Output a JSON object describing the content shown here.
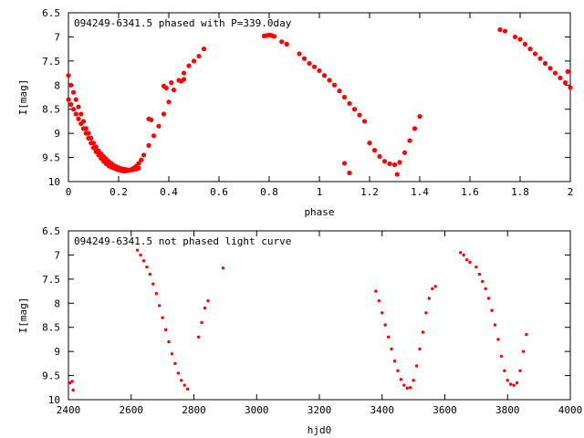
{
  "chart_data": [
    {
      "type": "scatter",
      "title": "094249-6341.5 phased with P=339.0day",
      "xlabel": "phase",
      "ylabel": "I[mag]",
      "xlim": [
        0,
        2
      ],
      "ylim": [
        6.5,
        10
      ],
      "y_inverted": true,
      "grid": false,
      "legend": "none",
      "color": "#ff0000",
      "marker_size": 2.6,
      "x_ticks": [
        "0",
        "0.2",
        "0.4",
        "0.6",
        "0.8",
        "1",
        "1.2",
        "1.4",
        "1.6",
        "1.8",
        "2"
      ],
      "y_ticks": [
        "6.5",
        "7",
        "7.5",
        "8",
        "8.5",
        "9",
        "9.5",
        "10"
      ],
      "series": [
        {
          "x": [
            0.0,
            0.01,
            0.02,
            0.03,
            0.04,
            0.05,
            0.06,
            0.07,
            0.08,
            0.09,
            0.1,
            0.11,
            0.12,
            0.13,
            0.14,
            0.15,
            0.16,
            0.17,
            0.18,
            0.19,
            0.2,
            0.21,
            0.22,
            0.23,
            0.24,
            0.25,
            0.26,
            0.27,
            0.0,
            0.01,
            0.02,
            0.03,
            0.04,
            0.05,
            0.06,
            0.07,
            0.08,
            0.09,
            0.1,
            0.11,
            0.12,
            0.13,
            0.14,
            0.15,
            0.16,
            0.17,
            0.18,
            0.19,
            0.2,
            0.21,
            0.22,
            0.23,
            0.24,
            0.25,
            0.26,
            0.27,
            0.28,
            0.29,
            0.3,
            0.32,
            0.34,
            0.36,
            0.38,
            0.4,
            0.42,
            0.44,
            0.46,
            0.48,
            0.5,
            0.52,
            0.54,
            0.78,
            0.79,
            0.8,
            0.81,
            0.82,
            0.85,
            0.87,
            0.92,
            0.94,
            0.96,
            0.98,
            1.0,
            1.02,
            1.04,
            1.06,
            1.08,
            1.1,
            1.12,
            1.14,
            1.16,
            1.18,
            1.2,
            1.22,
            1.24,
            1.26,
            1.28,
            1.3,
            1.32,
            1.34,
            1.36,
            1.38,
            1.4,
            1.72,
            1.74,
            1.78,
            1.8,
            1.82,
            1.84,
            1.86,
            1.88,
            1.9,
            1.92,
            1.94,
            1.96,
            1.98,
            2.0,
            0.2,
            0.28,
            0.32,
            0.33,
            0.38,
            0.39,
            0.41,
            0.45,
            0.46,
            1.1,
            1.12,
            1.31,
            1.99
          ],
          "y": [
            7.8,
            8.0,
            8.15,
            8.3,
            8.45,
            8.6,
            8.75,
            8.9,
            9.0,
            9.1,
            9.2,
            9.28,
            9.36,
            9.42,
            9.48,
            9.53,
            9.58,
            9.62,
            9.66,
            9.69,
            9.71,
            9.73,
            9.74,
            9.75,
            9.76,
            9.76,
            9.75,
            9.74,
            8.3,
            8.4,
            8.5,
            8.6,
            8.7,
            8.8,
            8.9,
            9.0,
            9.1,
            9.2,
            9.3,
            9.38,
            9.45,
            9.52,
            9.58,
            9.63,
            9.67,
            9.7,
            9.72,
            9.74,
            9.76,
            9.77,
            9.78,
            9.78,
            9.77,
            9.75,
            9.72,
            9.68,
            9.62,
            9.55,
            9.45,
            9.25,
            9.05,
            8.85,
            8.6,
            8.35,
            8.1,
            7.9,
            7.75,
            7.6,
            7.5,
            7.4,
            7.25,
            6.98,
            6.97,
            6.96,
            6.97,
            6.99,
            7.1,
            7.15,
            7.35,
            7.45,
            7.55,
            7.62,
            7.7,
            7.8,
            7.9,
            8.0,
            8.12,
            8.25,
            8.38,
            8.5,
            8.62,
            8.75,
            9.2,
            9.35,
            9.48,
            9.58,
            9.63,
            9.65,
            9.6,
            9.4,
            9.15,
            8.9,
            8.65,
            6.85,
            6.88,
            7.0,
            7.05,
            7.15,
            7.25,
            7.35,
            7.45,
            7.55,
            7.65,
            7.75,
            7.85,
            7.95,
            8.05,
            9.75,
            9.72,
            8.7,
            8.72,
            8.02,
            8.06,
            7.95,
            7.92,
            7.88,
            9.62,
            9.82,
            9.85,
            7.72
          ]
        }
      ]
    },
    {
      "type": "scatter",
      "title": "094249-6341.5 not phased light curve",
      "xlabel": "hjd0",
      "ylabel": "I[mag]",
      "xlim": [
        2400,
        4000
      ],
      "ylim": [
        6.5,
        10
      ],
      "y_inverted": true,
      "grid": false,
      "legend": "none",
      "color": "#ff0000",
      "marker_size": 1.7,
      "x_ticks": [
        "2400",
        "2600",
        "2800",
        "3000",
        "3200",
        "3400",
        "3600",
        "3800",
        "4000"
      ],
      "y_ticks": [
        "6.5",
        "7",
        "7.5",
        "8",
        "8.5",
        "9",
        "9.5",
        "10"
      ],
      "series": [
        {
          "x": [
            2405,
            2412,
            2415,
            2620,
            2630,
            2640,
            2650,
            2660,
            2670,
            2680,
            2690,
            2700,
            2710,
            2720,
            2730,
            2740,
            2750,
            2760,
            2770,
            2780,
            2815,
            2825,
            2835,
            2845,
            2893,
            3380,
            3390,
            3400,
            3410,
            3420,
            3430,
            3440,
            3450,
            3460,
            3470,
            3480,
            3490,
            3500,
            3510,
            3520,
            3530,
            3540,
            3550,
            3560,
            3570,
            3650,
            3660,
            3670,
            3680,
            3700,
            3710,
            3720,
            3730,
            3740,
            3750,
            3760,
            3770,
            3780,
            3790,
            3800,
            3810,
            3820,
            3830,
            3840,
            3850,
            3860
          ],
          "y": [
            9.65,
            9.62,
            9.8,
            6.9,
            7.0,
            7.12,
            7.25,
            7.4,
            7.6,
            7.8,
            8.05,
            8.3,
            8.55,
            8.8,
            9.05,
            9.25,
            9.45,
            9.6,
            9.7,
            9.78,
            8.7,
            8.4,
            8.1,
            7.95,
            7.27,
            7.75,
            7.95,
            8.2,
            8.45,
            8.7,
            8.95,
            9.2,
            9.4,
            9.58,
            9.7,
            9.76,
            9.75,
            9.6,
            9.3,
            8.95,
            8.6,
            8.2,
            7.9,
            7.7,
            7.65,
            6.95,
            7.0,
            7.1,
            7.15,
            7.25,
            7.4,
            7.55,
            7.7,
            7.9,
            8.15,
            8.45,
            8.75,
            9.1,
            9.4,
            9.6,
            9.68,
            9.7,
            9.65,
            9.4,
            9.0,
            8.65
          ]
        }
      ]
    }
  ]
}
